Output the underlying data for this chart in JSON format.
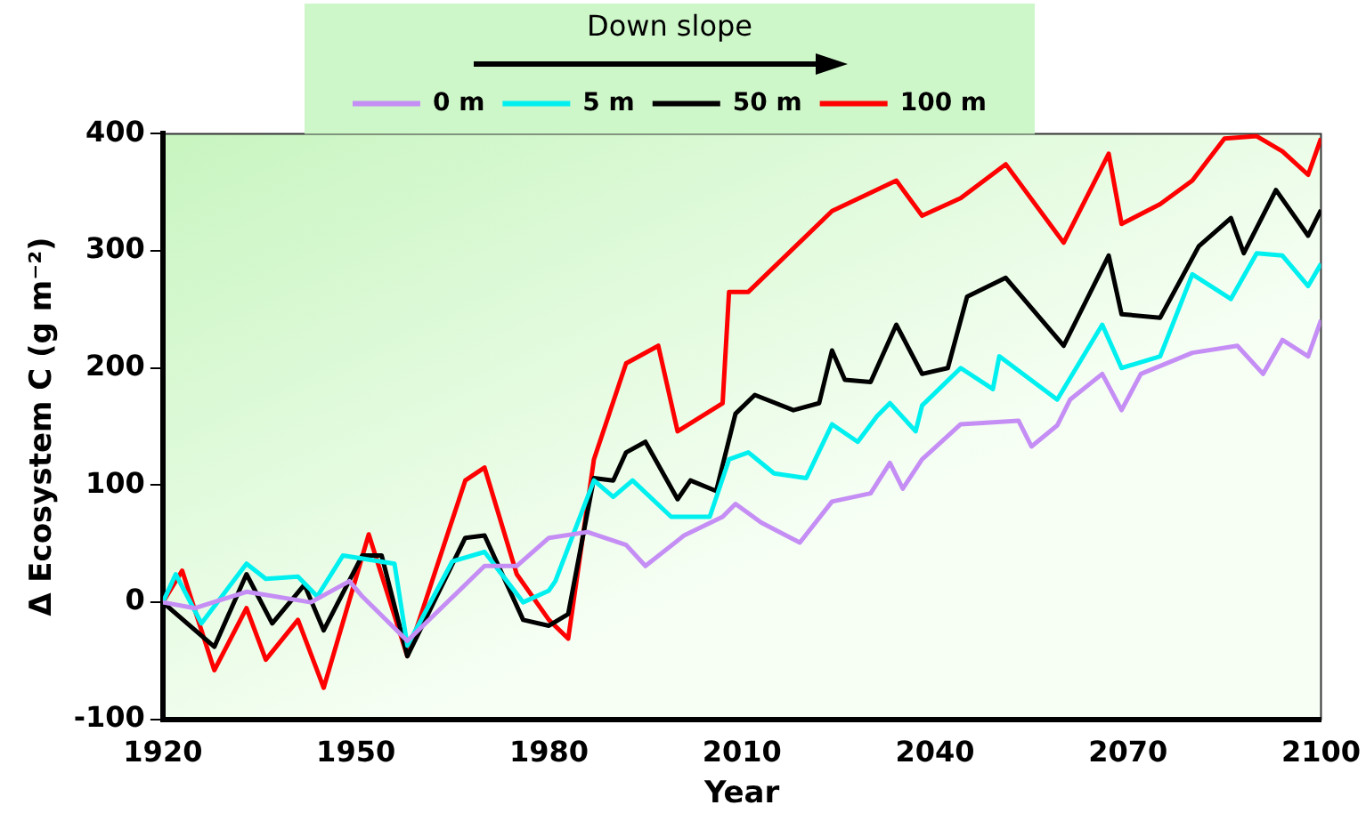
{
  "chart_data": {
    "type": "line",
    "xlabel": "Year",
    "ylabel": "Δ Ecosystem C (g m⁻²)",
    "legend_title": "Down slope",
    "legend": "top",
    "grid": false,
    "marker": "none",
    "line_style": "solid",
    "xlim": [
      1920,
      2100
    ],
    "xticks": [
      1920,
      1950,
      1980,
      2010,
      2040,
      2070,
      2100
    ],
    "ylim": [
      -100,
      400
    ],
    "yticks": [
      -100,
      0,
      100,
      200,
      300,
      400
    ],
    "series": [
      {
        "name": "0 m",
        "color": "#c58ef5",
        "x": [
          1920,
          1925,
          1933,
          1943,
          1949,
          1951,
          1958,
          1970,
          1975,
          1980,
          1986,
          1992,
          1995,
          2001,
          2007,
          2009,
          2013,
          2019,
          2024,
          2030,
          2033,
          2035,
          2038,
          2044,
          2053,
          2055,
          2059,
          2061,
          2066,
          2069,
          2072,
          2080,
          2087,
          2091,
          2094,
          2098,
          2100
        ],
        "values": [
          0,
          -5,
          9,
          0,
          18,
          5,
          -33,
          31,
          31,
          55,
          60,
          49,
          31,
          57,
          73,
          84,
          68,
          51,
          86,
          93,
          119,
          97,
          122,
          152,
          155,
          133,
          151,
          173,
          195,
          164,
          195,
          213,
          219,
          195,
          224,
          210,
          241
        ]
      },
      {
        "name": "5 m",
        "color": "#00f0f0",
        "x": [
          1920,
          1922,
          1926,
          1933,
          1936,
          1941,
          1944,
          1948,
          1956,
          1958,
          1965,
          1970,
          1976,
          1980,
          1981,
          1987,
          1990,
          1993,
          1999,
          2005,
          2008,
          2011,
          2015,
          2020,
          2024,
          2028,
          2031,
          2033,
          2037,
          2038,
          2044,
          2049,
          2050,
          2059,
          2066,
          2069,
          2075,
          2080,
          2086,
          2090,
          2094,
          2098,
          2100
        ],
        "values": [
          0,
          24,
          -18,
          33,
          20,
          22,
          5,
          40,
          33,
          -37,
          35,
          43,
          0,
          10,
          18,
          104,
          90,
          104,
          73,
          73,
          122,
          128,
          110,
          106,
          152,
          137,
          159,
          170,
          146,
          168,
          200,
          182,
          210,
          173,
          237,
          200,
          210,
          280,
          259,
          298,
          296,
          270,
          289
        ]
      },
      {
        "name": "50 m",
        "color": "#000000",
        "x": [
          1920,
          1928,
          1933,
          1937,
          1942,
          1945,
          1951,
          1954,
          1958,
          1967,
          1970,
          1976,
          1980,
          1983,
          1987,
          1990,
          1992,
          1995,
          2000,
          2002,
          2006,
          2009,
          2012,
          2018,
          2022,
          2024,
          2026,
          2030,
          2034,
          2038,
          2042,
          2045,
          2051,
          2060,
          2067,
          2069,
          2075,
          2081,
          2086,
          2088,
          2093,
          2098,
          2100
        ],
        "values": [
          0,
          -38,
          24,
          -18,
          15,
          -24,
          40,
          40,
          -46,
          55,
          57,
          -15,
          -20,
          -10,
          106,
          104,
          128,
          137,
          88,
          104,
          95,
          161,
          177,
          164,
          170,
          215,
          190,
          188,
          237,
          195,
          200,
          261,
          277,
          219,
          296,
          246,
          243,
          304,
          328,
          298,
          352,
          313,
          335
        ]
      },
      {
        "name": "100 m",
        "color": "#ff0000",
        "x": [
          1920,
          1923,
          1928,
          1933,
          1936,
          1941,
          1945,
          1952,
          1958,
          1967,
          1970,
          1975,
          1980,
          1983,
          1987,
          1992,
          1997,
          2000,
          2007,
          2008,
          2011,
          2024,
          2034,
          2038,
          2044,
          2051,
          2060,
          2067,
          2069,
          2075,
          2080,
          2085,
          2090,
          2094,
          2098,
          2100
        ],
        "values": [
          0,
          27,
          -58,
          -5,
          -49,
          -15,
          -73,
          58,
          -46,
          104,
          115,
          24,
          -15,
          -31,
          122,
          204,
          219,
          146,
          170,
          265,
          265,
          334,
          360,
          330,
          345,
          374,
          307,
          383,
          323,
          340,
          360,
          396,
          398,
          385,
          365,
          396
        ]
      }
    ]
  }
}
